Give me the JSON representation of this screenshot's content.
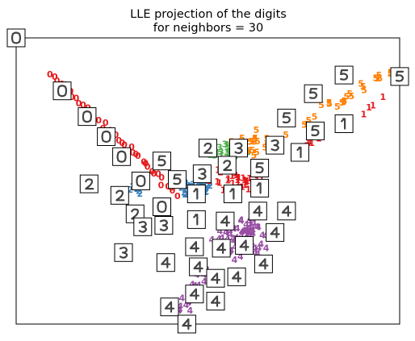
{
  "chart_data": {
    "type": "scatter",
    "title_lines": [
      "LLE projection of the digits",
      "for neighbors = 30"
    ],
    "xlabel": "",
    "ylabel": "",
    "xlim": [
      0,
      1
    ],
    "ylim": [
      0,
      1
    ],
    "x_ticks": "none",
    "y_ticks": "none",
    "grid": false,
    "legend": "none",
    "marker": "digit-class-text",
    "classes": [
      "0",
      "1",
      "2",
      "3",
      "4",
      "5"
    ],
    "class_colors": {
      "0": "#e41a1c",
      "1": "#e41a1c",
      "2": "#377eb8",
      "3": "#4daf4a",
      "4": "#984ea3",
      "5": "#ff7f00"
    },
    "thumbnail_images": [
      {
        "digit": "0",
        "x": 0.0,
        "y": 1.0
      },
      {
        "digit": "0",
        "x": 0.12,
        "y": 0.815
      },
      {
        "digit": "0",
        "x": 0.185,
        "y": 0.725
      },
      {
        "digit": "0",
        "x": 0.235,
        "y": 0.655
      },
      {
        "digit": "0",
        "x": 0.275,
        "y": 0.585
      },
      {
        "digit": "0",
        "x": 0.325,
        "y": 0.5
      },
      {
        "digit": "0",
        "x": 0.38,
        "y": 0.41
      },
      {
        "digit": "2",
        "x": 0.19,
        "y": 0.49
      },
      {
        "digit": "2",
        "x": 0.27,
        "y": 0.45
      },
      {
        "digit": "2",
        "x": 0.31,
        "y": 0.385
      },
      {
        "digit": "3",
        "x": 0.33,
        "y": 0.34
      },
      {
        "digit": "3",
        "x": 0.385,
        "y": 0.345
      },
      {
        "digit": "3",
        "x": 0.28,
        "y": 0.25
      },
      {
        "digit": "5",
        "x": 0.38,
        "y": 0.57
      },
      {
        "digit": "5",
        "x": 0.42,
        "y": 0.505
      },
      {
        "digit": "3",
        "x": 0.485,
        "y": 0.525
      },
      {
        "digit": "2",
        "x": 0.5,
        "y": 0.615
      },
      {
        "digit": "3",
        "x": 0.58,
        "y": 0.615
      },
      {
        "digit": "2",
        "x": 0.55,
        "y": 0.555
      },
      {
        "digit": "5",
        "x": 0.635,
        "y": 0.545
      },
      {
        "digit": "1",
        "x": 0.47,
        "y": 0.455
      },
      {
        "digit": "1",
        "x": 0.565,
        "y": 0.455
      },
      {
        "digit": "1",
        "x": 0.635,
        "y": 0.475
      },
      {
        "digit": "3",
        "x": 0.675,
        "y": 0.625
      },
      {
        "digit": "1",
        "x": 0.74,
        "y": 0.6
      },
      {
        "digit": "5",
        "x": 0.705,
        "y": 0.72
      },
      {
        "digit": "5",
        "x": 0.775,
        "y": 0.805
      },
      {
        "digit": "5",
        "x": 0.78,
        "y": 0.675
      },
      {
        "digit": "1",
        "x": 0.855,
        "y": 0.7
      },
      {
        "digit": "5",
        "x": 0.855,
        "y": 0.87
      },
      {
        "digit": "5",
        "x": 1.0,
        "y": 0.865
      },
      {
        "digit": "1",
        "x": 0.47,
        "y": 0.365
      },
      {
        "digit": "4",
        "x": 0.545,
        "y": 0.36
      },
      {
        "digit": "4",
        "x": 0.63,
        "y": 0.395
      },
      {
        "digit": "4",
        "x": 0.705,
        "y": 0.395
      },
      {
        "digit": "4",
        "x": 0.675,
        "y": 0.32
      },
      {
        "digit": "4",
        "x": 0.465,
        "y": 0.27
      },
      {
        "digit": "4",
        "x": 0.535,
        "y": 0.265
      },
      {
        "digit": "4",
        "x": 0.595,
        "y": 0.275
      },
      {
        "digit": "4",
        "x": 0.39,
        "y": 0.215
      },
      {
        "digit": "4",
        "x": 0.475,
        "y": 0.2
      },
      {
        "digit": "4",
        "x": 0.52,
        "y": 0.16
      },
      {
        "digit": "4",
        "x": 0.575,
        "y": 0.165
      },
      {
        "digit": "4",
        "x": 0.645,
        "y": 0.21
      },
      {
        "digit": "4",
        "x": 0.465,
        "y": 0.105
      },
      {
        "digit": "4",
        "x": 0.52,
        "y": 0.08
      },
      {
        "digit": "4",
        "x": 0.4,
        "y": 0.06
      },
      {
        "digit": "4",
        "x": 0.445,
        "y": 0.0
      }
    ]
  }
}
